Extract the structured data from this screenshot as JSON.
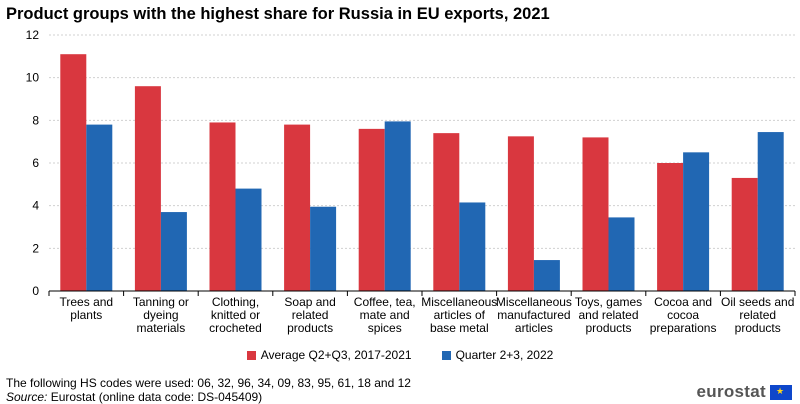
{
  "chart_data": {
    "type": "bar",
    "title": "Product groups with the highest share for Russia in EU exports, 2021",
    "categories": [
      [
        "Trees and",
        "plants"
      ],
      [
        "Tanning or",
        "dyeing",
        "materials"
      ],
      [
        "Clothing,",
        "knitted or",
        "crocheted"
      ],
      [
        "Soap and",
        "related",
        "products"
      ],
      [
        "Coffee, tea,",
        "mate and",
        "spices"
      ],
      [
        "Miscellaneous",
        "articles of",
        "base metal"
      ],
      [
        "Miscellaneous",
        "manufactured",
        "articles"
      ],
      [
        "Toys, games",
        "and related",
        "products"
      ],
      [
        "Cocoa and",
        "cocoa",
        "preparations"
      ],
      [
        "Oil seeds and",
        "related",
        "products"
      ]
    ],
    "series": [
      {
        "name": "Average Q2+Q3, 2017-2021",
        "color": "#d9373f",
        "values": [
          11.1,
          9.6,
          7.9,
          7.8,
          7.6,
          7.4,
          7.25,
          7.2,
          6.0,
          5.3
        ]
      },
      {
        "name": "Quarter 2+3, 2022",
        "color": "#2167b3",
        "values": [
          7.8,
          3.7,
          4.8,
          3.95,
          7.95,
          4.15,
          1.45,
          3.45,
          6.5,
          7.45
        ]
      }
    ],
    "ylim": [
      0,
      12
    ],
    "yticks": [
      0,
      2,
      4,
      6,
      8,
      10,
      12
    ],
    "grid": true,
    "legend": "bottom"
  },
  "footnote": "The following HS codes were used: 06, 32, 96, 34, 09, 83, 95, 61, 18 and 12",
  "source_label": "Source:",
  "source_text": " Eurostat (online data code: DS-045409)",
  "logo_text": "eurostat"
}
